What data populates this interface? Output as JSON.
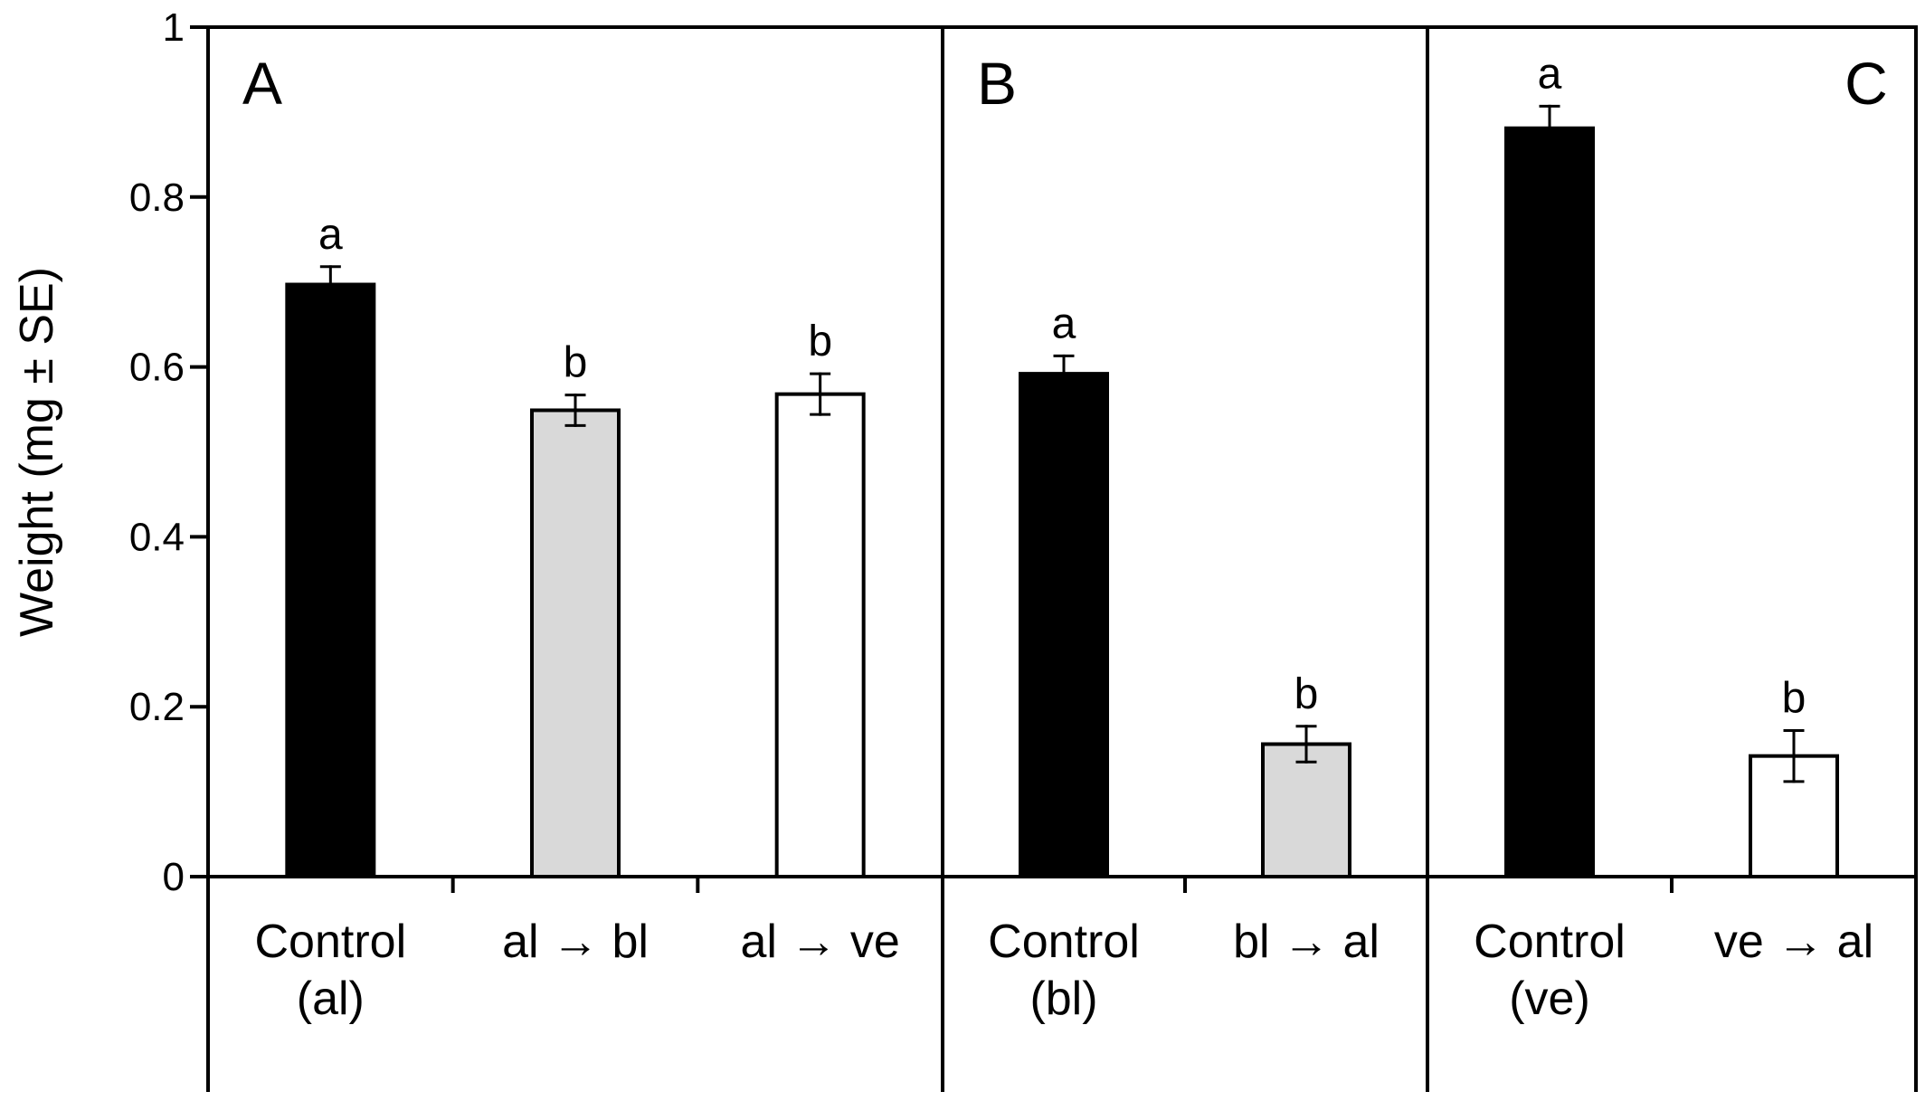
{
  "chart_data": {
    "type": "bar",
    "ylabel": "Weight (mg ± SE)",
    "ylim": [
      0,
      1
    ],
    "yticks": [
      "0",
      "0.2",
      "0.4",
      "0.6",
      "0.8",
      "1"
    ],
    "grid": false,
    "legend": "none",
    "colors": {
      "black": "#000000",
      "grey": "#d9d9d9",
      "white": "#ffffff"
    },
    "panels": [
      {
        "letter": "A",
        "letter_position": "top-left",
        "bars": [
          {
            "label_lines": [
              "Control",
              "(al)"
            ],
            "value": 0.697,
            "se": 0.021,
            "sig": "a",
            "fill": "black"
          },
          {
            "label_lines": [
              "al → bl"
            ],
            "value": 0.549,
            "se": 0.018,
            "sig": "b",
            "fill": "grey"
          },
          {
            "label_lines": [
              "al → ve"
            ],
            "value": 0.568,
            "se": 0.024,
            "sig": "b",
            "fill": "white"
          }
        ]
      },
      {
        "letter": "B",
        "letter_position": "top-left",
        "bars": [
          {
            "label_lines": [
              "Control",
              "(bl)"
            ],
            "value": 0.592,
            "se": 0.021,
            "sig": "a",
            "fill": "black"
          },
          {
            "label_lines": [
              "bl → al"
            ],
            "value": 0.156,
            "se": 0.021,
            "sig": "b",
            "fill": "grey"
          }
        ]
      },
      {
        "letter": "C",
        "letter_position": "top-right",
        "bars": [
          {
            "label_lines": [
              "Control",
              "(ve)"
            ],
            "value": 0.881,
            "se": 0.026,
            "sig": "a",
            "fill": "black"
          },
          {
            "label_lines": [
              "ve → al"
            ],
            "value": 0.142,
            "se": 0.03,
            "sig": "b",
            "fill": "white"
          }
        ]
      }
    ]
  }
}
